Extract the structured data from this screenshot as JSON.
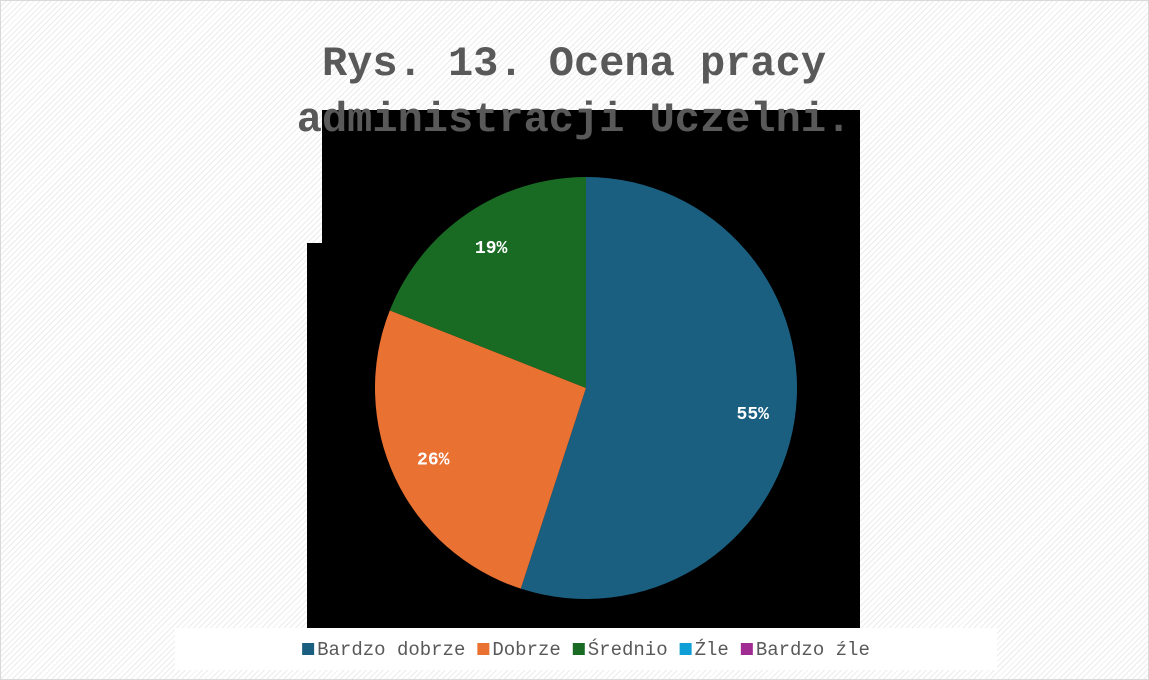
{
  "chart_data": {
    "type": "pie",
    "title": "Rys. 13. Ocena pracy administracji Uczelni.",
    "title_lines": [
      "Rys. 13. Ocena pracy",
      "administracji Uczelni."
    ],
    "categories": [
      "Bardzo dobrze",
      "Dobrze",
      "Średnio",
      "Źle",
      "Bardzo źle"
    ],
    "values": [
      55,
      26,
      19,
      0,
      0
    ],
    "value_labels": [
      "55%",
      "26%",
      "19%",
      null,
      null
    ],
    "colors": [
      "#1a5f80",
      "#e97132",
      "#196b24",
      "#0f9ed5",
      "#a02b93"
    ],
    "legend": "bottom"
  }
}
